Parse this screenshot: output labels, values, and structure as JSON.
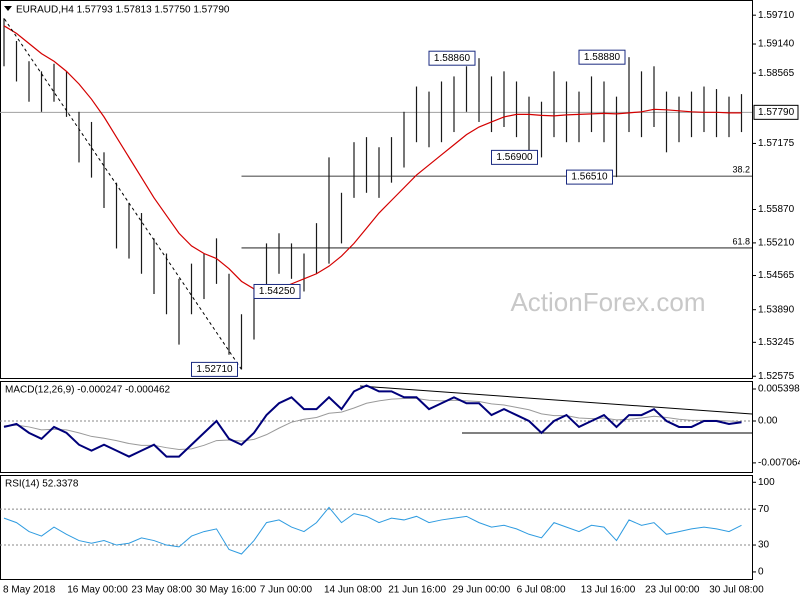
{
  "chart_data": [
    {
      "type": "ohlc",
      "title": "EURAUD,H4  1.57793 1.57813 1.57750 1.57790",
      "watermark": "ActionForex.com",
      "categories": [
        "8 May 2018",
        "16 May 00:00",
        "23 May 08:00",
        "30 May 16:00",
        "7 Jun 00:00",
        "14 Jun 08:00",
        "21 Jun 16:00",
        "29 Jun 00:00",
        "6 Jul 08:00",
        "13 Jul 16:00",
        "23 Jul 00:00",
        "30 Jul 08:00"
      ],
      "bar_color": "#1a1a1a",
      "high": [
        1.5965,
        1.592,
        1.588,
        1.586,
        1.5875,
        1.586,
        1.578,
        1.576,
        1.57,
        1.564,
        1.56,
        1.558,
        1.553,
        1.55,
        1.545,
        1.548,
        1.55,
        1.553,
        1.546,
        1.538,
        1.543,
        1.552,
        1.554,
        1.552,
        1.55,
        1.556,
        1.569,
        1.562,
        1.572,
        1.573,
        1.571,
        1.573,
        1.578,
        1.583,
        1.582,
        1.584,
        1.585,
        1.587,
        1.5886,
        1.585,
        1.586,
        1.584,
        1.581,
        1.58,
        1.586,
        1.584,
        1.582,
        1.585,
        1.584,
        1.581,
        1.5888,
        1.586,
        1.587,
        1.582,
        1.581,
        1.582,
        1.583,
        1.5825,
        1.581,
        1.5815
      ],
      "low": [
        1.587,
        1.584,
        1.58,
        1.578,
        1.58,
        1.577,
        1.568,
        1.565,
        1.559,
        1.551,
        1.549,
        1.546,
        1.542,
        1.538,
        1.532,
        1.538,
        1.541,
        1.544,
        1.53,
        1.5271,
        1.533,
        1.542,
        1.546,
        1.545,
        1.5425,
        1.546,
        1.548,
        1.552,
        1.561,
        1.562,
        1.561,
        1.564,
        1.567,
        1.572,
        1.571,
        1.572,
        1.574,
        1.578,
        1.576,
        1.574,
        1.575,
        1.573,
        1.57,
        1.569,
        1.573,
        1.572,
        1.572,
        1.574,
        1.572,
        1.5651,
        1.574,
        1.573,
        1.575,
        1.57,
        1.572,
        1.573,
        1.574,
        1.573,
        1.573,
        1.574
      ],
      "ma": {
        "color": "#d40000",
        "values": [
          1.595,
          1.5935,
          1.5915,
          1.5895,
          1.588,
          1.586,
          1.5835,
          1.5805,
          1.577,
          1.573,
          1.569,
          1.565,
          1.561,
          1.5575,
          1.554,
          1.5515,
          1.55,
          1.549,
          1.547,
          1.5445,
          1.543,
          1.5425,
          1.543,
          1.544,
          1.545,
          1.546,
          1.5475,
          1.5495,
          1.552,
          1.555,
          1.558,
          1.5605,
          1.563,
          1.5655,
          1.5675,
          1.5695,
          1.5715,
          1.5735,
          1.575,
          1.576,
          1.577,
          1.5775,
          1.5775,
          1.5773,
          1.5772,
          1.5774,
          1.5775,
          1.5776,
          1.5777,
          1.5776,
          1.5778,
          1.578,
          1.5785,
          1.5784,
          1.5782,
          1.578,
          1.5779,
          1.5779,
          1.5778,
          1.5778
        ]
      },
      "ylim": [
        1.5254,
        1.6001
      ],
      "yticks": [
        {
          "value": 1.5971,
          "label": "1.59710"
        },
        {
          "value": 1.5914,
          "label": "1.59140"
        },
        1.58565,
        1.57175,
        {
          "value": 1.5587,
          "label": "1.55870"
        },
        {
          "value": 1.5521,
          "label": "1.55210"
        },
        1.54565,
        {
          "value": 1.5389,
          "label": "1.53890"
        },
        1.53245,
        1.52575
      ],
      "last": {
        "value": 1.5779,
        "label": "1.57790"
      },
      "annotations": [
        {
          "value": 1.5271,
          "label": "1.52710"
        },
        {
          "value": 1.5425,
          "label": "1.54250"
        },
        {
          "value": 1.569,
          "label": "1.56900"
        },
        {
          "value": 1.5886,
          "label": "1.58860"
        },
        {
          "value": 1.5651,
          "label": "1.56510"
        },
        {
          "value": 1.5888,
          "label": "1.58880"
        }
      ],
      "fib_levels": [
        {
          "value": 1.5653,
          "label": "38.2"
        },
        {
          "value": 1.5511,
          "label": "61.8"
        }
      ]
    },
    {
      "type": "macd",
      "title": "MACD(12,26,9) -0.000247 -0.000462",
      "macd": {
        "color": "#00007a",
        "values": [
          -0.001,
          -0.0005,
          -0.002,
          -0.003,
          -0.001,
          -0.002,
          -0.004,
          -0.005,
          -0.004,
          -0.005,
          -0.006,
          -0.005,
          -0.004,
          -0.006,
          -0.006,
          -0.004,
          -0.002,
          0.0,
          -0.003,
          -0.004,
          -0.002,
          0.001,
          0.003,
          0.004,
          0.002,
          0.002,
          0.004,
          0.002,
          0.005,
          0.006,
          0.005,
          0.005,
          0.004,
          0.004,
          0.002,
          0.003,
          0.004,
          0.003,
          0.003,
          0.001,
          0.002,
          0.001,
          0.0,
          -0.002,
          0.0,
          0.001,
          -0.001,
          0.0,
          0.001,
          -0.001,
          0.001,
          0.001,
          0.002,
          0.0,
          -0.001,
          -0.001,
          0.0,
          0.0,
          -0.0005,
          -0.0002
        ]
      },
      "signal": {
        "color": "#9a9a9a",
        "values": [
          -0.0008,
          -0.0007,
          -0.001,
          -0.0015,
          -0.0014,
          -0.0015,
          -0.002,
          -0.0026,
          -0.0029,
          -0.0033,
          -0.0038,
          -0.0041,
          -0.0041,
          -0.0045,
          -0.0048,
          -0.0047,
          -0.0041,
          -0.0033,
          -0.0032,
          -0.0034,
          -0.0031,
          -0.0023,
          -0.0012,
          -0.0002,
          0.0003,
          0.0006,
          0.0013,
          0.0015,
          0.0022,
          0.003,
          0.0034,
          0.0037,
          0.0038,
          0.0038,
          0.0035,
          0.0034,
          0.0035,
          0.0034,
          0.0033,
          0.0029,
          0.0027,
          0.0023,
          0.0019,
          0.0012,
          0.0009,
          0.0009,
          0.0005,
          0.0004,
          0.0005,
          0.0002,
          0.0003,
          0.0005,
          0.0008,
          0.0006,
          0.0003,
          0.0001,
          0.0001,
          0.0001,
          0.0,
          -0.0001
        ]
      },
      "ylim": [
        -0.0086,
        0.00658
      ],
      "yticks": [
        0.005398,
        {
          "value": 0,
          "label": "0.00"
        },
        -0.007064
      ],
      "levels": [
        0
      ]
    },
    {
      "type": "rsi",
      "title": "RSI(14) 52.3378",
      "color": "#2e9be0",
      "values": [
        60,
        55,
        45,
        40,
        50,
        42,
        35,
        32,
        35,
        30,
        32,
        38,
        35,
        30,
        28,
        40,
        45,
        48,
        25,
        20,
        35,
        55,
        58,
        50,
        45,
        55,
        72,
        55,
        65,
        62,
        55,
        60,
        58,
        62,
        55,
        58,
        60,
        62,
        55,
        50,
        52,
        48,
        42,
        38,
        55,
        50,
        45,
        52,
        50,
        35,
        58,
        52,
        55,
        42,
        45,
        48,
        50,
        48,
        45,
        52
      ],
      "ylim": [
        -9,
        107
      ],
      "yticks": [
        100,
        70,
        30,
        0
      ],
      "levels": [
        70,
        30
      ]
    }
  ]
}
